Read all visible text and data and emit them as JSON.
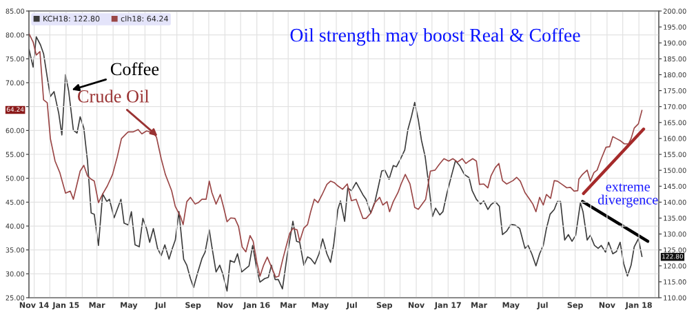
{
  "chart_data": {
    "type": "line",
    "title": "Oil strength may boost Real & Coffee",
    "xlim": [
      "2014-10-22",
      "2018-02-08"
    ],
    "xticks": [
      {
        "value": "2014-11-01",
        "label": "Nov 14"
      },
      {
        "value": "2014-12-01",
        "label": null
      },
      {
        "value": "2015-01-01",
        "label": "Jan 15"
      },
      {
        "value": "2015-02-01",
        "label": null
      },
      {
        "value": "2015-03-01",
        "label": "Mar"
      },
      {
        "value": "2015-04-01",
        "label": null
      },
      {
        "value": "2015-05-01",
        "label": "May"
      },
      {
        "value": "2015-06-01",
        "label": null
      },
      {
        "value": "2015-07-01",
        "label": "Jul"
      },
      {
        "value": "2015-08-01",
        "label": null
      },
      {
        "value": "2015-09-01",
        "label": "Sep"
      },
      {
        "value": "2015-10-01",
        "label": null
      },
      {
        "value": "2015-11-01",
        "label": "Nov"
      },
      {
        "value": "2015-12-01",
        "label": null
      },
      {
        "value": "2016-01-01",
        "label": "Jan 16"
      },
      {
        "value": "2016-02-01",
        "label": null
      },
      {
        "value": "2016-03-01",
        "label": "Mar"
      },
      {
        "value": "2016-04-01",
        "label": null
      },
      {
        "value": "2016-05-01",
        "label": "May"
      },
      {
        "value": "2016-06-01",
        "label": null
      },
      {
        "value": "2016-07-01",
        "label": "Jul"
      },
      {
        "value": "2016-08-01",
        "label": null
      },
      {
        "value": "2016-09-01",
        "label": "Sep"
      },
      {
        "value": "2016-10-01",
        "label": null
      },
      {
        "value": "2016-11-01",
        "label": "Nov"
      },
      {
        "value": "2016-12-01",
        "label": null
      },
      {
        "value": "2017-01-01",
        "label": "Jan 17"
      },
      {
        "value": "2017-02-01",
        "label": null
      },
      {
        "value": "2017-03-01",
        "label": "Mar"
      },
      {
        "value": "2017-04-01",
        "label": null
      },
      {
        "value": "2017-05-01",
        "label": "May"
      },
      {
        "value": "2017-06-01",
        "label": null
      },
      {
        "value": "2017-07-01",
        "label": "Jul"
      },
      {
        "value": "2017-08-01",
        "label": null
      },
      {
        "value": "2017-09-01",
        "label": "Sep"
      },
      {
        "value": "2017-10-01",
        "label": null
      },
      {
        "value": "2017-11-01",
        "label": "Nov"
      },
      {
        "value": "2017-12-01",
        "label": null
      },
      {
        "value": "2018-01-01",
        "label": "Jan 18"
      },
      {
        "value": "2018-02-01",
        "label": null
      }
    ],
    "ylim": [
      25,
      85
    ],
    "yticks": [
      {
        "value": 25,
        "label": "25.00"
      },
      {
        "value": 30,
        "label": "30.00"
      },
      {
        "value": 35,
        "label": "35.00"
      },
      {
        "value": 40,
        "label": "40.00"
      },
      {
        "value": 45,
        "label": "45.00"
      },
      {
        "value": 50,
        "label": "50.00"
      },
      {
        "value": 55,
        "label": "55.00"
      },
      {
        "value": 60,
        "label": "60.00"
      },
      {
        "value": 65,
        "label": null
      },
      {
        "value": 70,
        "label": "70.00"
      },
      {
        "value": 75,
        "label": "75.00"
      },
      {
        "value": 80,
        "label": "80.00"
      },
      {
        "value": 85,
        "label": "85.00"
      }
    ],
    "y2lim": [
      110,
      200
    ],
    "y2ticks": [
      {
        "value": 110,
        "label": "110.00"
      },
      {
        "value": 115,
        "label": "115.00"
      },
      {
        "value": 120,
        "label": "120.00"
      },
      {
        "value": 125,
        "label": "125.00"
      },
      {
        "value": 130,
        "label": "130.00"
      },
      {
        "value": 135,
        "label": "135.00"
      },
      {
        "value": 140,
        "label": "140.00"
      },
      {
        "value": 145,
        "label": "145.00"
      },
      {
        "value": 150,
        "label": "150.00"
      },
      {
        "value": 155,
        "label": "155.00"
      },
      {
        "value": 160,
        "label": "160.00"
      },
      {
        "value": 165,
        "label": "165.00"
      },
      {
        "value": 170,
        "label": "170.00"
      },
      {
        "value": 175,
        "label": "175.00"
      },
      {
        "value": 180,
        "label": "180.00"
      },
      {
        "value": 185,
        "label": "185.00"
      },
      {
        "value": 190,
        "label": "190.00"
      },
      {
        "value": 195,
        "label": "195.00"
      },
      {
        "value": 200,
        "label": "200.00"
      }
    ],
    "grid": true,
    "legend": "top left",
    "series": [
      {
        "name": "KCH18: 122.80",
        "color": "#3c3c3c",
        "axis": "y2",
        "x": [
          "2014-10-22",
          "2014-10-30",
          "2014-11-05",
          "2014-11-13",
          "2014-11-19",
          "2014-11-26",
          "2014-12-02",
          "2014-12-09",
          "2014-12-18",
          "2014-12-24",
          "2014-12-31",
          "2015-01-06",
          "2015-01-15",
          "2015-01-22",
          "2015-01-28",
          "2015-02-04",
          "2015-02-11",
          "2015-02-18",
          "2015-02-24",
          "2015-03-04",
          "2015-03-12",
          "2015-03-20",
          "2015-03-25",
          "2015-04-03",
          "2015-04-16",
          "2015-04-22",
          "2015-04-30",
          "2015-05-06",
          "2015-05-13",
          "2015-05-21",
          "2015-05-28",
          "2015-06-04",
          "2015-06-10",
          "2015-06-17",
          "2015-06-25",
          "2015-07-02",
          "2015-07-09",
          "2015-07-17",
          "2015-07-23",
          "2015-07-29",
          "2015-08-05",
          "2015-08-14",
          "2015-08-20",
          "2015-08-27",
          "2015-09-02",
          "2015-09-09",
          "2015-09-18",
          "2015-09-24",
          "2015-10-02",
          "2015-10-07",
          "2015-10-15",
          "2015-10-22",
          "2015-10-28",
          "2015-11-05",
          "2015-11-11",
          "2015-11-19",
          "2015-11-25",
          "2015-12-03",
          "2015-12-17",
          "2015-12-24",
          "2016-01-01",
          "2016-01-07",
          "2016-01-16",
          "2016-01-23",
          "2016-01-29",
          "2016-02-05",
          "2016-02-11",
          "2016-02-19",
          "2016-02-28",
          "2016-03-10",
          "2016-03-17",
          "2016-03-23",
          "2016-03-31",
          "2016-04-07",
          "2016-04-13",
          "2016-04-21",
          "2016-04-29",
          "2016-05-06",
          "2016-05-14",
          "2016-05-21",
          "2016-05-27",
          "2016-06-04",
          "2016-06-09",
          "2016-06-17",
          "2016-06-23",
          "2016-06-30",
          "2016-07-09",
          "2016-07-22",
          "2016-07-28",
          "2016-08-06",
          "2016-08-14",
          "2016-08-20",
          "2016-08-27",
          "2016-09-02",
          "2016-09-10",
          "2016-09-18",
          "2016-09-24",
          "2016-10-02",
          "2016-10-10",
          "2016-10-16",
          "2016-10-23",
          "2016-10-29",
          "2016-11-05",
          "2016-11-11",
          "2016-11-18",
          "2016-11-24",
          "2016-12-02",
          "2016-12-08",
          "2016-12-16",
          "2016-12-22",
          "2016-12-30",
          "2017-01-08",
          "2017-01-15",
          "2017-01-23",
          "2017-02-01",
          "2017-02-10",
          "2017-02-16",
          "2017-02-24",
          "2017-03-04",
          "2017-03-10",
          "2017-03-18",
          "2017-03-24",
          "2017-04-01",
          "2017-04-09",
          "2017-04-15",
          "2017-04-23",
          "2017-05-01",
          "2017-05-09",
          "2017-05-18",
          "2017-05-28",
          "2017-06-03",
          "2017-06-10",
          "2017-06-18",
          "2017-06-25",
          "2017-07-02",
          "2017-07-08",
          "2017-07-15",
          "2017-07-23",
          "2017-07-29",
          "2017-08-04",
          "2017-08-12",
          "2017-08-19",
          "2017-08-26",
          "2017-09-02",
          "2017-09-11",
          "2017-09-16",
          "2017-09-24",
          "2017-09-30",
          "2017-10-08",
          "2017-10-15",
          "2017-10-21",
          "2017-10-29",
          "2017-11-04",
          "2017-11-12",
          "2017-11-19",
          "2017-11-26",
          "2017-12-03",
          "2017-12-10",
          "2017-12-17",
          "2017-12-23",
          "2017-12-31",
          "2018-01-07"
        ],
        "values": [
          188.1,
          182.4,
          191.9,
          189.4,
          186.6,
          179.2,
          173.2,
          174.7,
          167.9,
          161.1,
          180.0,
          174.9,
          162.6,
          161.7,
          166.8,
          163.2,
          153.0,
          136.6,
          136.2,
          126.4,
          142.6,
          140.2,
          140.9,
          135.1,
          140.9,
          133.4,
          132.8,
          137.0,
          126.6,
          126.0,
          134.9,
          131.7,
          127.4,
          131.7,
          125.5,
          123.2,
          126.6,
          122.1,
          125.3,
          128.1,
          137.0,
          122.1,
          120.2,
          116.0,
          113.2,
          117.4,
          122.3,
          124.3,
          131.3,
          126.0,
          118.1,
          120.2,
          117.4,
          112.1,
          121.7,
          121.1,
          123.8,
          118.1,
          120.0,
          126.4,
          118.9,
          114.9,
          116.0,
          116.4,
          120.2,
          115.7,
          115.7,
          112.8,
          123.2,
          134.0,
          127.7,
          127.4,
          120.2,
          122.8,
          122.3,
          120.6,
          123.8,
          128.5,
          123.8,
          121.1,
          126.6,
          137.7,
          140.4,
          134.0,
          144.5,
          143.6,
          146.2,
          142.3,
          140.9,
          136.6,
          140.2,
          144.5,
          149.8,
          150.0,
          147.2,
          151.5,
          151.1,
          153.6,
          156.4,
          162.8,
          167.0,
          171.3,
          165.8,
          159.4,
          154.3,
          146.6,
          135.5,
          138.1,
          136.0,
          137.0,
          143.0,
          148.7,
          153.0,
          151.5,
          148.7,
          147.7,
          143.6,
          140.9,
          139.4,
          140.4,
          137.7,
          139.2,
          140.2,
          138.7,
          129.8,
          130.9,
          133.0,
          132.8,
          131.7,
          125.5,
          126.4,
          123.8,
          120.0,
          123.8,
          126.4,
          131.7,
          136.2,
          137.7,
          140.2,
          140.2,
          128.1,
          129.8,
          127.7,
          129.6,
          139.8,
          137.0,
          128.1,
          129.6,
          126.4,
          125.5,
          126.4,
          124.3,
          127.4,
          123.8,
          124.5,
          127.4,
          120.6,
          116.8,
          120.2,
          126.0,
          128.5,
          122.8
        ]
      },
      {
        "name": "clh18: 64.24",
        "color": "#9a4646",
        "x": [
          "2014-10-22",
          "2014-10-30",
          "2014-11-05",
          "2014-11-12",
          "2014-11-19",
          "2014-11-26",
          "2014-12-02",
          "2014-12-11",
          "2014-12-20",
          "2014-12-31",
          "2015-01-09",
          "2015-01-15",
          "2015-01-22",
          "2015-01-28",
          "2015-02-04",
          "2015-02-11",
          "2015-02-18",
          "2015-02-24",
          "2015-03-04",
          "2015-03-12",
          "2015-03-21",
          "2015-03-31",
          "2015-04-09",
          "2015-04-17",
          "2015-04-26",
          "2015-04-30",
          "2015-05-09",
          "2015-05-19",
          "2015-05-26",
          "2015-06-04",
          "2015-06-17",
          "2015-06-23",
          "2015-07-02",
          "2015-07-10",
          "2015-07-22",
          "2015-07-29",
          "2015-08-08",
          "2015-08-13",
          "2015-08-20",
          "2015-08-27",
          "2015-09-05",
          "2015-09-11",
          "2015-09-18",
          "2015-09-26",
          "2015-10-02",
          "2015-10-07",
          "2015-10-15",
          "2015-10-23",
          "2015-10-29",
          "2015-11-05",
          "2015-11-12",
          "2015-11-20",
          "2015-11-27",
          "2015-12-04",
          "2015-12-11",
          "2015-12-19",
          "2015-12-25",
          "2016-01-01",
          "2016-01-07",
          "2016-01-14",
          "2016-01-21",
          "2016-01-29",
          "2016-02-06",
          "2016-02-12",
          "2016-02-20",
          "2016-02-27",
          "2016-03-04",
          "2016-03-10",
          "2016-03-18",
          "2016-03-23",
          "2016-03-31",
          "2016-04-07",
          "2016-04-13",
          "2016-04-20",
          "2016-04-27",
          "2016-05-05",
          "2016-05-14",
          "2016-05-21",
          "2016-05-28",
          "2016-06-04",
          "2016-06-13",
          "2016-06-22",
          "2016-06-30",
          "2016-07-09",
          "2016-07-22",
          "2016-07-28",
          "2016-08-06",
          "2016-08-14",
          "2016-08-23",
          "2016-08-29",
          "2016-09-06",
          "2016-09-11",
          "2016-09-18",
          "2016-09-27",
          "2016-10-03",
          "2016-10-11",
          "2016-10-20",
          "2016-10-29",
          "2016-11-05",
          "2016-11-11",
          "2016-11-19",
          "2016-11-28",
          "2016-12-07",
          "2016-12-15",
          "2016-12-24",
          "2017-01-02",
          "2017-01-10",
          "2017-01-19",
          "2017-01-28",
          "2017-02-04",
          "2017-02-10",
          "2017-02-17",
          "2017-02-24",
          "2017-03-02",
          "2017-03-10",
          "2017-03-18",
          "2017-03-24",
          "2017-04-01",
          "2017-04-08",
          "2017-04-15",
          "2017-04-23",
          "2017-05-05",
          "2017-05-12",
          "2017-05-19",
          "2017-05-28",
          "2017-06-06",
          "2017-06-12",
          "2017-06-18",
          "2017-06-25",
          "2017-07-02",
          "2017-07-08",
          "2017-07-16",
          "2017-07-23",
          "2017-07-29",
          "2017-08-07",
          "2017-08-16",
          "2017-08-23",
          "2017-08-30",
          "2017-09-06",
          "2017-09-08",
          "2017-09-15",
          "2017-09-24",
          "2017-09-30",
          "2017-10-07",
          "2017-10-13",
          "2017-10-21",
          "2017-10-30",
          "2017-11-06",
          "2017-11-12",
          "2017-11-19",
          "2017-11-26",
          "2017-12-04",
          "2017-12-12",
          "2017-12-17",
          "2017-12-23",
          "2017-12-31",
          "2018-01-07"
        ],
        "values": [
          80.3,
          78.5,
          75.8,
          76.5,
          66.4,
          65.8,
          58.3,
          53.6,
          51.2,
          46.9,
          47.3,
          45.6,
          48.8,
          51.5,
          52.7,
          50.5,
          49.8,
          49.4,
          44.9,
          46.7,
          48.4,
          50.8,
          54.5,
          58.3,
          59.3,
          59.7,
          59.7,
          60.2,
          59.3,
          59.9,
          59.5,
          58.6,
          54.1,
          50.8,
          47.4,
          44.1,
          42.0,
          40.3,
          45.1,
          46.0,
          44.6,
          44.9,
          45.6,
          45.6,
          49.4,
          47.0,
          44.6,
          46.6,
          44.1,
          40.9,
          41.7,
          41.6,
          39.9,
          35.6,
          34.6,
          38.0,
          36.8,
          32.4,
          29.5,
          31.8,
          33.5,
          31.4,
          29.3,
          29.5,
          33.2,
          36.1,
          38.5,
          39.5,
          39.2,
          36.8,
          39.6,
          40.3,
          43.0,
          45.6,
          44.9,
          46.6,
          48.7,
          49.4,
          49.1,
          48.4,
          47.7,
          48.8,
          45.3,
          45.6,
          41.6,
          41.6,
          42.7,
          44.9,
          46.0,
          44.4,
          45.1,
          43.0,
          45.1,
          47.0,
          48.8,
          50.8,
          48.8,
          43.9,
          43.5,
          44.4,
          45.6,
          51.5,
          51.7,
          52.9,
          54.1,
          53.6,
          54.1,
          53.4,
          54.1,
          53.1,
          53.6,
          54.1,
          53.6,
          48.7,
          48.8,
          48.0,
          50.5,
          52.2,
          53.1,
          49.5,
          48.8,
          49.5,
          50.2,
          49.4,
          47.0,
          45.6,
          44.6,
          43.0,
          46.0,
          44.4,
          46.6,
          45.8,
          49.5,
          49.4,
          48.7,
          48.0,
          48.1,
          47.3,
          47.4,
          49.8,
          50.8,
          51.7,
          49.4,
          51.2,
          51.7,
          54.1,
          56.5,
          56.6,
          58.7,
          58.3,
          57.9,
          57.2,
          57.2,
          58.3,
          60.5,
          61.4,
          64.3
        ]
      },
      {
        "type": "line",
        "color": "#a52a2a",
        "x": [
          "2017-09-17",
          "2018-01-10"
        ],
        "values": [
          46.8,
          60.3
        ]
      },
      {
        "type": "line",
        "color": "#000000",
        "axis": "y2",
        "x": [
          "2017-09-15",
          "2018-01-18"
        ],
        "values": [
          140.2,
          127.7
        ]
      }
    ],
    "annotations": [
      {
        "text": "Coffee",
        "x": "2015-01-12",
        "y": 68.5
      },
      {
        "text": "Crude Oil",
        "x": "2015-06-25",
        "y": 58.8
      },
      "extreme\ndivergence",
      "122.80",
      "64.24"
    ]
  }
}
